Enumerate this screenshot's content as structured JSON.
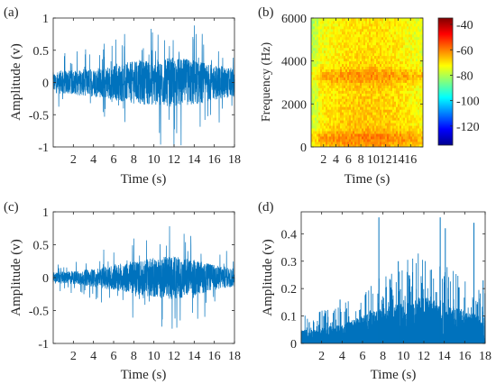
{
  "chart_data": [
    {
      "panel": "(a)",
      "type": "line",
      "xlabel": "Time (s)",
      "ylabel": "Amplitude (v)",
      "xlim": [
        0,
        18
      ],
      "ylim": [
        -1,
        1
      ],
      "xticks": [
        2,
        4,
        6,
        8,
        10,
        12,
        14,
        16,
        18
      ],
      "yticks": [
        -1,
        -0.5,
        0,
        0.5,
        1
      ],
      "ytick_labels": [
        "-1",
        "-0.5",
        "0",
        "0.5",
        "1"
      ],
      "color": "#0072BD",
      "envelope": {
        "x": [
          0,
          2,
          4,
          6,
          8,
          10,
          12,
          14,
          16,
          18
        ],
        "y": [
          0.3,
          0.35,
          0.4,
          0.5,
          0.6,
          0.65,
          0.7,
          0.65,
          0.5,
          0.4
        ]
      }
    },
    {
      "panel": "(b)",
      "type": "heatmap",
      "ylabel": "Frequency (Hz)",
      "xlabel": "Time (s)",
      "xlim": [
        0,
        18
      ],
      "ylim": [
        0,
        6000
      ],
      "xticks": [
        2,
        4,
        6,
        8,
        10,
        12,
        14,
        16
      ],
      "yticks": [
        0,
        2000,
        4000,
        6000
      ],
      "colorbar": {
        "min": -135,
        "max": -35,
        "ticks": [
          -40,
          -60,
          -80,
          -100,
          -120
        ]
      },
      "bands_hz": [
        400,
        3300
      ]
    },
    {
      "panel": "(c)",
      "type": "line",
      "xlabel": "Time (s)",
      "ylabel": "Amplitude (v)",
      "xlim": [
        0,
        18
      ],
      "ylim": [
        -1,
        1
      ],
      "xticks": [
        2,
        4,
        6,
        8,
        10,
        12,
        14,
        16,
        18
      ],
      "yticks": [
        -1,
        -0.5,
        0,
        0.5,
        1
      ],
      "ytick_labels": [
        "-1",
        "-0.5",
        "0",
        "0.5",
        "1"
      ],
      "color": "#0072BD",
      "envelope": {
        "x": [
          0,
          2,
          4,
          6,
          8,
          10,
          12,
          14,
          16,
          18
        ],
        "y": [
          0.15,
          0.18,
          0.25,
          0.35,
          0.45,
          0.55,
          0.6,
          0.5,
          0.35,
          0.25
        ]
      }
    },
    {
      "panel": "(d)",
      "type": "line",
      "xlabel": "Time (s)",
      "ylabel": "Amplitude (v)",
      "xlim": [
        0,
        18
      ],
      "ylim": [
        0,
        0.48
      ],
      "xticks": [
        2,
        4,
        6,
        8,
        10,
        12,
        14,
        16,
        18
      ],
      "yticks": [
        0,
        0.1,
        0.2,
        0.3,
        0.4
      ],
      "ytick_labels": [
        "0",
        "0.1",
        "0.2",
        "0.3",
        "0.4"
      ],
      "color": "#0072BD",
      "envelope": {
        "x": [
          0,
          2,
          4,
          6,
          8,
          10,
          12,
          14,
          16,
          18
        ],
        "y": [
          0.05,
          0.06,
          0.07,
          0.1,
          0.13,
          0.15,
          0.17,
          0.15,
          0.12,
          0.1
        ]
      },
      "peaks": [
        {
          "x": 2.2,
          "y": 0.1
        },
        {
          "x": 3.8,
          "y": 0.16
        },
        {
          "x": 7.6,
          "y": 0.46
        },
        {
          "x": 9.5,
          "y": 0.3
        },
        {
          "x": 10.9,
          "y": 0.26
        },
        {
          "x": 13.6,
          "y": 0.46
        },
        {
          "x": 14.1,
          "y": 0.42
        },
        {
          "x": 16.9,
          "y": 0.44
        },
        {
          "x": 17.8,
          "y": 0.23
        }
      ]
    }
  ]
}
